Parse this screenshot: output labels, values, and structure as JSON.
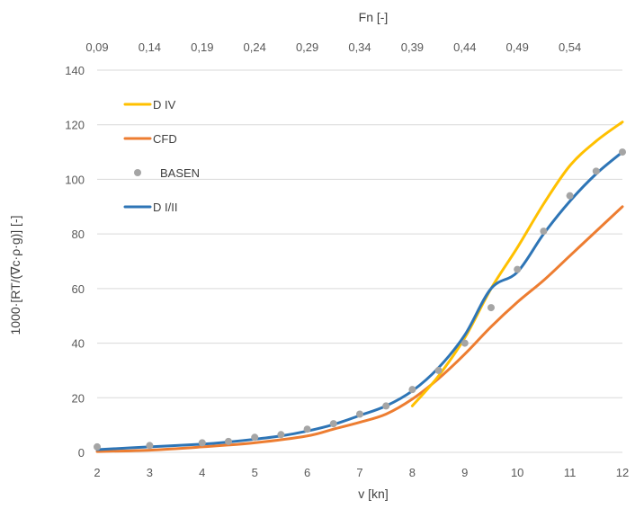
{
  "chart_data": {
    "type": "line",
    "x_title": "v [kn]",
    "x2_title": "Fn [-]",
    "y_title": "1000·[RT/(∇c·ρ·g)] [-]",
    "xlim": [
      2,
      12
    ],
    "ylim": [
      0,
      140
    ],
    "x_ticks": [
      "2",
      "3",
      "4",
      "5",
      "6",
      "7",
      "8",
      "9",
      "10",
      "11",
      "12"
    ],
    "y_ticks": [
      "0",
      "20",
      "40",
      "60",
      "80",
      "100",
      "120",
      "140"
    ],
    "x2_ticks": [
      "0,09",
      "0,14",
      "0,19",
      "0,24",
      "0,29",
      "0,34",
      "0,39",
      "0,44",
      "0,49",
      "0,54"
    ],
    "grid": "horizontal",
    "legend_position": "top-left",
    "series": [
      {
        "name": "D IV",
        "kind": "line",
        "color": "#FFC000",
        "x": [
          8,
          8.5,
          9,
          9.5,
          10,
          10.5,
          11,
          11.5,
          12
        ],
        "y": [
          17,
          28,
          42,
          60,
          75,
          91,
          105,
          114,
          121
        ]
      },
      {
        "name": "CFD",
        "kind": "line",
        "color": "#ED7D31",
        "x": [
          2,
          3,
          4,
          5,
          6,
          6.5,
          7,
          7.5,
          8,
          8.5,
          9,
          9.5,
          10,
          10.5,
          11,
          11.5,
          12
        ],
        "y": [
          0.3,
          0.8,
          2,
          3.5,
          6,
          8.5,
          11,
          14,
          19.5,
          27,
          36,
          46,
          55,
          63,
          72,
          81,
          90
        ]
      },
      {
        "name": "BASEN",
        "kind": "scatter",
        "color": "#A5A5A5",
        "x": [
          2,
          3,
          4,
          4.5,
          5,
          5.5,
          6,
          6.5,
          7,
          7.5,
          8,
          8.5,
          9,
          9.5,
          10,
          10.5,
          11,
          11.5,
          12
        ],
        "y": [
          2,
          2.5,
          3.5,
          4,
          5.5,
          6.5,
          8.5,
          10.5,
          14,
          17,
          23,
          30,
          40,
          53,
          67,
          81,
          94,
          103,
          110
        ]
      },
      {
        "name": "D I/II",
        "kind": "line",
        "color": "#2E75B6",
        "x": [
          2,
          3,
          4,
          4.5,
          5,
          5.5,
          6,
          6.5,
          7,
          7.5,
          8,
          8.5,
          9,
          9.5,
          10,
          10.5,
          11,
          11.5,
          12
        ],
        "y": [
          1,
          2,
          3,
          3.8,
          4.8,
          6,
          7.8,
          10.2,
          13.5,
          17,
          22.5,
          31,
          43,
          60,
          66,
          80,
          92,
          102,
          110
        ]
      }
    ]
  }
}
